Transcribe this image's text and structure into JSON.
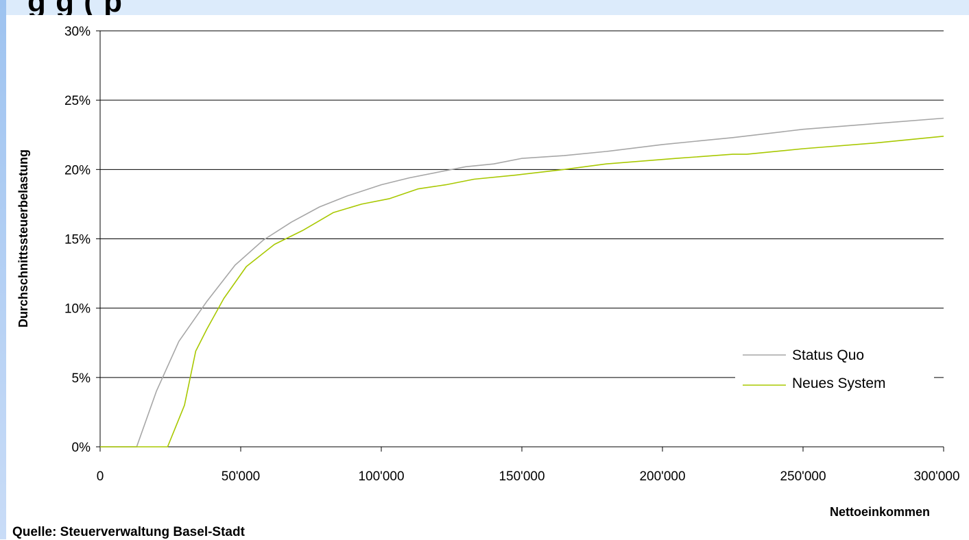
{
  "header": {
    "title_fragment": "g                                                   g (     p"
  },
  "source": "Quelle: Steuerverwaltung Basel-Stadt",
  "chart_data": {
    "type": "line",
    "title": "",
    "xlabel": "Nettoeinkommen",
    "ylabel": "Durchschnittssteuerbelastung",
    "xlim": [
      0,
      300000
    ],
    "ylim": [
      0,
      30
    ],
    "x_ticks": [
      0,
      50000,
      100000,
      150000,
      200000,
      250000,
      300000
    ],
    "x_tick_labels": [
      "0",
      "50'000",
      "100'000",
      "150'000",
      "200'000",
      "250'000",
      "300'000"
    ],
    "y_ticks": [
      0,
      5,
      10,
      15,
      20,
      25,
      30
    ],
    "y_tick_labels": [
      "0%",
      "5%",
      "10%",
      "15%",
      "20%",
      "25%",
      "30%"
    ],
    "grid": "horizontal",
    "legend_position": "bottom-right",
    "series": [
      {
        "name": "Status Quo",
        "color": "#a6a6a6",
        "points": [
          [
            0,
            0
          ],
          [
            13000,
            0
          ],
          [
            20000,
            4
          ],
          [
            28000,
            7.6
          ],
          [
            38000,
            10.5
          ],
          [
            48000,
            13.1
          ],
          [
            58000,
            14.9
          ],
          [
            68000,
            16.2
          ],
          [
            78000,
            17.3
          ],
          [
            88000,
            18.1
          ],
          [
            100000,
            18.9
          ],
          [
            110000,
            19.4
          ],
          [
            120000,
            19.8
          ],
          [
            130000,
            20.2
          ],
          [
            140000,
            20.4
          ],
          [
            150000,
            20.8
          ],
          [
            165000,
            21.0
          ],
          [
            180000,
            21.3
          ],
          [
            200000,
            21.8
          ],
          [
            225000,
            22.3
          ],
          [
            250000,
            22.9
          ],
          [
            275000,
            23.3
          ],
          [
            300000,
            23.7
          ]
        ]
      },
      {
        "name": "Neues System",
        "color": "#a8c800",
        "points": [
          [
            0,
            0
          ],
          [
            24000,
            0
          ],
          [
            30000,
            3
          ],
          [
            34000,
            6.9
          ],
          [
            38000,
            8.5
          ],
          [
            44000,
            10.7
          ],
          [
            52000,
            13.0
          ],
          [
            62000,
            14.6
          ],
          [
            72000,
            15.6
          ],
          [
            83000,
            16.9
          ],
          [
            93000,
            17.5
          ],
          [
            103000,
            17.9
          ],
          [
            113000,
            18.6
          ],
          [
            123000,
            18.9
          ],
          [
            133000,
            19.3
          ],
          [
            148000,
            19.6
          ],
          [
            165000,
            20.0
          ],
          [
            180000,
            20.4
          ],
          [
            205000,
            20.8
          ],
          [
            225000,
            21.1
          ],
          [
            230000,
            21.1
          ],
          [
            250000,
            21.5
          ],
          [
            275000,
            21.9
          ],
          [
            300000,
            22.4
          ]
        ]
      }
    ]
  }
}
